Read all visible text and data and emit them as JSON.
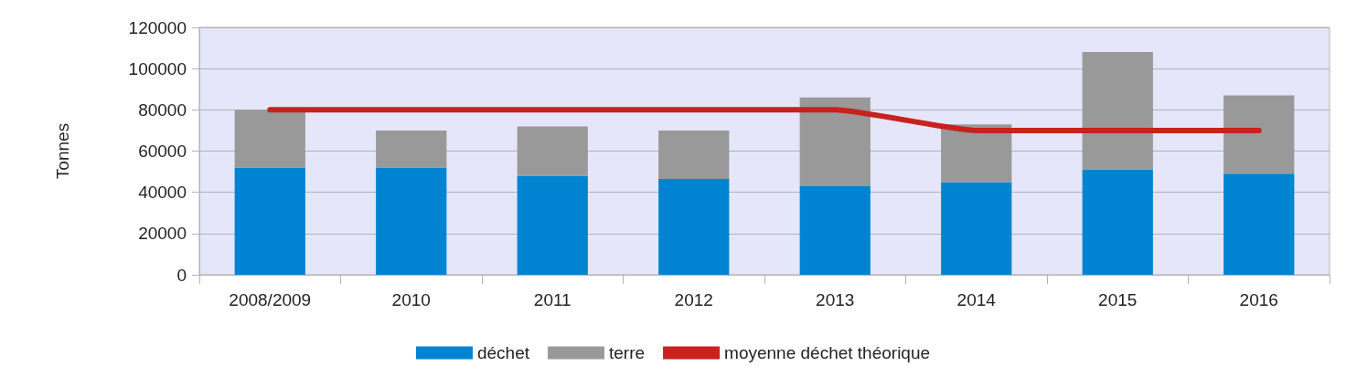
{
  "chart_data": {
    "type": "bar",
    "stacked": true,
    "ylabel": "Tonnes",
    "categories": [
      "2008/2009",
      "2010",
      "2011",
      "2012",
      "2013",
      "2014",
      "2015",
      "2016"
    ],
    "series": [
      {
        "name": "déchet",
        "color": "#0084d1",
        "values": [
          52000,
          52000,
          48000,
          46500,
          43000,
          45000,
          51000,
          49000
        ]
      },
      {
        "name": "terre",
        "color": "#999999",
        "values": [
          28000,
          18000,
          24000,
          23500,
          43000,
          28000,
          57000,
          38000
        ]
      },
      {
        "name": "moyenne déchet théorique",
        "type": "line",
        "color": "#c9211e",
        "values": [
          80000,
          80000,
          80000,
          80000,
          80000,
          70000,
          70000,
          70000
        ]
      }
    ],
    "ylim": [
      0,
      120000
    ],
    "yticks": [
      0,
      20000,
      40000,
      60000,
      80000,
      100000,
      120000
    ],
    "grid": "y",
    "legend": "bottom",
    "marker": "none",
    "line_style": "solid"
  }
}
